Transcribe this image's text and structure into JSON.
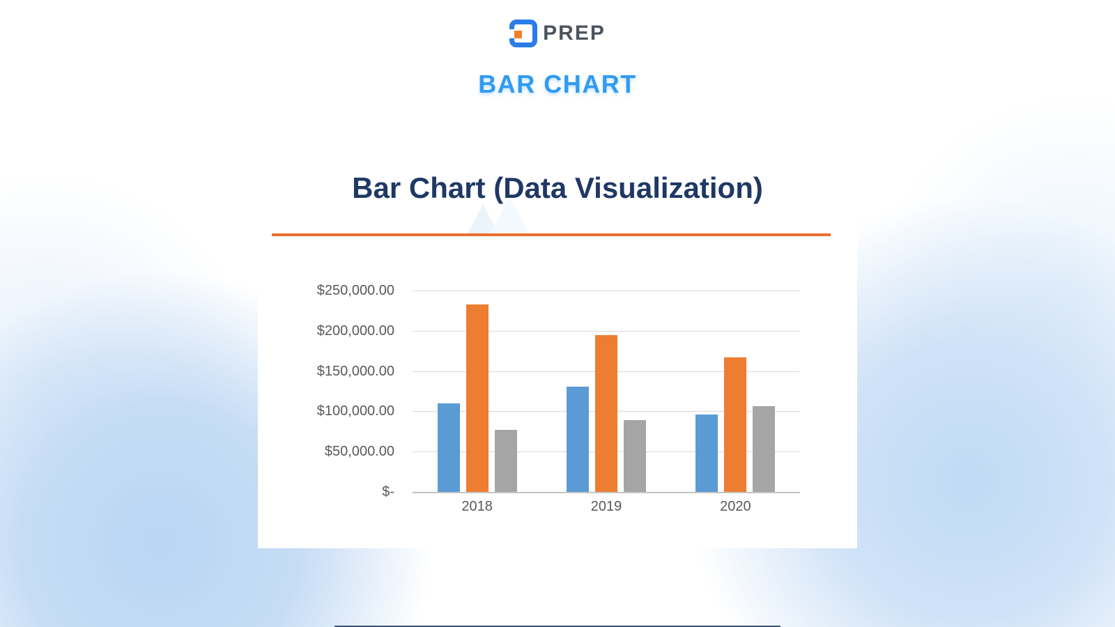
{
  "header": {
    "logo_text": "PREP",
    "page_heading": "BAR CHART"
  },
  "card": {
    "title": "Bar Chart (Data Visualization)"
  },
  "chart_data": {
    "type": "bar",
    "title": "Bar Chart (Data Visualization)",
    "categories": [
      "2018",
      "2019",
      "2020"
    ],
    "series": [
      {
        "id": "series-blue",
        "color": "#5B9BD5",
        "values": [
          110000,
          131000,
          96000
        ]
      },
      {
        "id": "series-orange",
        "color": "#ED7D31",
        "values": [
          233000,
          195000,
          167000
        ]
      },
      {
        "id": "series-gray",
        "color": "#A5A5A5",
        "values": [
          77000,
          89000,
          106000
        ]
      }
    ],
    "y_axis": {
      "max": 250000,
      "ticks": [
        {
          "value": 250000,
          "label": "$250,000.00"
        },
        {
          "value": 200000,
          "label": "$200,000.00"
        },
        {
          "value": 150000,
          "label": "$150,000.00"
        },
        {
          "value": 100000,
          "label": "$100,000.00"
        },
        {
          "value": 50000,
          "label": "$50,000.00"
        },
        {
          "value": 0,
          "label": "$-"
        }
      ]
    },
    "xlabel": "",
    "ylabel": "",
    "grid": true,
    "legend": "none"
  },
  "colors": {
    "accent_orange": "#ED6E2D",
    "heading_blue": "#2F9BF4",
    "title_navy": "#1F3864",
    "axis_text": "#595959",
    "gridline": "#D9D9D9",
    "bar_blue": "#5B9BD5",
    "bar_orange": "#ED7D31",
    "bar_gray": "#A5A5A5"
  }
}
